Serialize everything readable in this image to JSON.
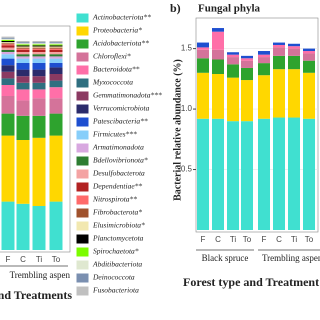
{
  "chart_data": [
    {
      "type": "stacked-bar",
      "x_label": "Forest type and Treatments",
      "groups": [
        "Trembling aspen"
      ],
      "categories": [
        "F",
        "C",
        "Ti",
        "To"
      ],
      "ylim": [
        0,
        1
      ],
      "legend": "right",
      "series": [
        {
          "name": "Actinobacteriota**",
          "color": "#40e0d0",
          "values": [
            0.22,
            0.21,
            0.2,
            0.22
          ]
        },
        {
          "name": "Proteobacteria*",
          "color": "#ffd700",
          "values": [
            0.3,
            0.29,
            0.31,
            0.3
          ]
        },
        {
          "name": "Acidobacteriota**",
          "color": "#2ea32e",
          "values": [
            0.1,
            0.11,
            0.1,
            0.1
          ]
        },
        {
          "name": "Chloroflexi*",
          "color": "#d4739a",
          "values": [
            0.08,
            0.07,
            0.08,
            0.07
          ]
        },
        {
          "name": "Bacteroidota**",
          "color": "#ff6fa8",
          "values": [
            0.05,
            0.05,
            0.04,
            0.05
          ]
        },
        {
          "name": "Myxococcota",
          "color": "#2f6f80",
          "values": [
            0.03,
            0.03,
            0.03,
            0.03
          ]
        },
        {
          "name": "Gemmatimonadota***",
          "color": "#8b3a62",
          "values": [
            0.03,
            0.03,
            0.03,
            0.03
          ]
        },
        {
          "name": "Verrucomicrobiota",
          "color": "#2b2b6b",
          "values": [
            0.03,
            0.03,
            0.03,
            0.03
          ]
        },
        {
          "name": "Patescibacteria**",
          "color": "#1e4fd0",
          "values": [
            0.03,
            0.03,
            0.03,
            0.02
          ]
        },
        {
          "name": "Firmicutes***",
          "color": "#87cefa",
          "values": [
            0.02,
            0.02,
            0.02,
            0.02
          ]
        },
        {
          "name": "Armatimonadota",
          "color": "#d8a8e0",
          "values": [
            0.01,
            0.01,
            0.01,
            0.01
          ]
        },
        {
          "name": "Bdellovibrionota*",
          "color": "#2e7d32",
          "values": [
            0.01,
            0.01,
            0.01,
            0.01
          ]
        },
        {
          "name": "Desulfobacterota",
          "color": "#f4a3a3",
          "values": [
            0.01,
            0.01,
            0.01,
            0.01
          ]
        },
        {
          "name": "Dependentiae**",
          "color": "#b22222",
          "values": [
            0.01,
            0.01,
            0.01,
            0.01
          ]
        },
        {
          "name": "Nitrospirota**",
          "color": "#ff6a6a",
          "values": [
            0.005,
            0.005,
            0.005,
            0.005
          ]
        },
        {
          "name": "Fibrobacterota*",
          "color": "#a0522d",
          "values": [
            0.005,
            0.005,
            0.005,
            0.005
          ]
        },
        {
          "name": "Elusimicrobiota*",
          "color": "#f2e8b0",
          "values": [
            0.005,
            0.005,
            0.005,
            0.005
          ]
        },
        {
          "name": "Planctomycetota",
          "color": "#000000",
          "values": [
            0.005,
            0.005,
            0.005,
            0.005
          ]
        },
        {
          "name": "Spirochaetota*",
          "color": "#7cfc00",
          "values": [
            0.005,
            0.005,
            0.005,
            0.005
          ]
        },
        {
          "name": "Abditibacteriota",
          "color": "#dfe8d0",
          "values": [
            0.005,
            0.005,
            0.005,
            0.005
          ]
        },
        {
          "name": "Deinococcota",
          "color": "#7a8fb0",
          "values": [
            0.005,
            0.005,
            0.005,
            0.005
          ]
        },
        {
          "name": "Fusobacteriota",
          "color": "#c0c0c0",
          "values": [
            0.005,
            0.005,
            0.005,
            0.005
          ]
        }
      ]
    },
    {
      "type": "stacked-bar",
      "panel": "b)",
      "title": "Fungal phyla",
      "y_label": "Bacterial relative abundance (%)",
      "x_label": "Forest type and Treatment",
      "groups": [
        "Black spruce",
        "Trembling aspen"
      ],
      "categories": [
        "F",
        "C",
        "Ti",
        "To",
        "F",
        "C",
        "Ti",
        "To"
      ],
      "ylim": [
        0,
        1.72
      ],
      "yticks": [
        {
          "value": 0.5,
          "label": "0.5"
        },
        {
          "value": 1,
          "label": "1.0"
        },
        {
          "value": 1.5,
          "label": "1.5"
        }
      ],
      "grid": true,
      "series": [
        {
          "color": "#40e0d0",
          "values": [
            0.92,
            0.92,
            0.9,
            0.9,
            0.92,
            0.93,
            0.93,
            0.92
          ]
        },
        {
          "color": "#ffd700",
          "values": [
            0.38,
            0.37,
            0.36,
            0.34,
            0.36,
            0.4,
            0.4,
            0.38
          ]
        },
        {
          "color": "#2ea32e",
          "values": [
            0.12,
            0.12,
            0.11,
            0.1,
            0.1,
            0.11,
            0.11,
            0.1
          ]
        },
        {
          "color": "#d4739a",
          "values": [
            0.07,
            0.08,
            0.06,
            0.06,
            0.05,
            0.07,
            0.06,
            0.06
          ]
        },
        {
          "color": "#ff6fa8",
          "values": [
            0.02,
            0.15,
            0.02,
            0.02,
            0.02,
            0.02,
            0.02,
            0.02
          ]
        },
        {
          "color": "#1e4fd0",
          "values": [
            0.04,
            0.03,
            0.02,
            0.02,
            0.03,
            0.02,
            0.02,
            0.02
          ]
        }
      ]
    }
  ]
}
